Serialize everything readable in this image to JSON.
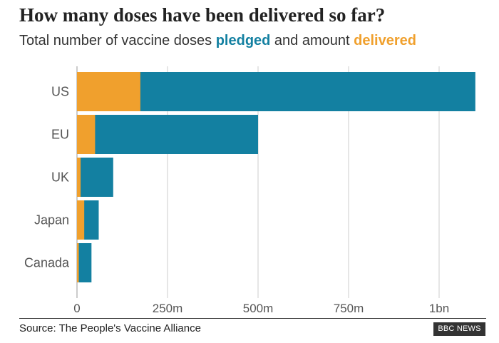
{
  "title": "How many doses have been delivered so far?",
  "subtitle": {
    "prefix": "Total number of vaccine doses ",
    "pledged_word": "pledged",
    "middle": " and amount ",
    "delivered_word": "delivered"
  },
  "source": "Source: The People's Vaccine Alliance",
  "logo_text": "BBC NEWS",
  "colors": {
    "pledged": "#1380A1",
    "delivered": "#F0A02D",
    "grid": "#cccccc",
    "text": "#555555"
  },
  "chart_data": {
    "type": "bar",
    "orientation": "horizontal",
    "categories": [
      "US",
      "EU",
      "UK",
      "Japan",
      "Canada"
    ],
    "series": [
      {
        "name": "pledged",
        "values": [
          1100,
          500,
          100,
          60,
          40
        ]
      },
      {
        "name": "delivered",
        "values": [
          175,
          50,
          10,
          20,
          5
        ]
      }
    ],
    "x_ticks": [
      {
        "value": 0,
        "label": "0"
      },
      {
        "value": 250,
        "label": "250m"
      },
      {
        "value": 500,
        "label": "500m"
      },
      {
        "value": 750,
        "label": "750m"
      },
      {
        "value": 1000,
        "label": "1bn"
      }
    ],
    "xlim": [
      0,
      1100
    ],
    "grid": true,
    "legend": "in subtitle"
  }
}
